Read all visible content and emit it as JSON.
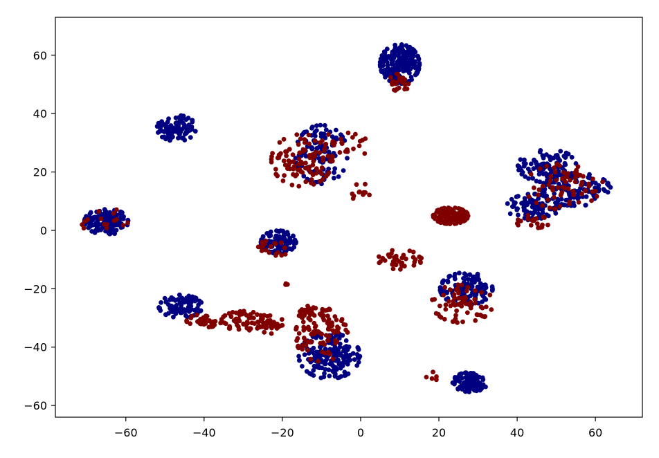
{
  "chart_data": {
    "type": "scatter",
    "title": "",
    "xlabel": "",
    "ylabel": "",
    "xlim": [
      -78,
      72
    ],
    "ylim": [
      -64,
      73
    ],
    "xticks": [
      -60,
      -40,
      -20,
      0,
      20,
      40,
      60
    ],
    "yticks": [
      -60,
      -40,
      -20,
      0,
      20,
      40,
      60
    ],
    "xtick_labels": [
      "−60",
      "−40",
      "−20",
      "0",
      "20",
      "40",
      "60"
    ],
    "ytick_labels": [
      "−60",
      "−40",
      "−20",
      "0",
      "20",
      "40",
      "60"
    ],
    "grid": false,
    "legend": "none",
    "series": [
      {
        "color": "#000080",
        "clusters": [
          {
            "cx": -65,
            "cy": 3,
            "rx": 5,
            "ry": 4,
            "n": 130
          },
          {
            "cx": -47,
            "cy": 35,
            "rx": 4.5,
            "ry": 4,
            "n": 100
          },
          {
            "cx": -21,
            "cy": -4,
            "rx": 4,
            "ry": 3.5,
            "n": 110
          },
          {
            "cx": -46,
            "cy": -26,
            "rx": 5,
            "ry": 3.5,
            "n": 90
          },
          {
            "cx": -10,
            "cy": 26,
            "rx": 6,
            "ry": 9,
            "n": 110
          },
          {
            "cx": 10,
            "cy": 57,
            "rx": 4.5,
            "ry": 6,
            "n": 170
          },
          {
            "cx": -8,
            "cy": -43,
            "rx": 7,
            "ry": 7,
            "n": 180
          },
          {
            "cx": 27,
            "cy": -20,
            "rx": 6,
            "ry": 5,
            "n": 120
          },
          {
            "cx": 28,
            "cy": -52,
            "rx": 4,
            "ry": 3,
            "n": 100
          },
          {
            "cx": 48,
            "cy": 22,
            "rx": 7,
            "ry": 5,
            "n": 110
          },
          {
            "cx": 55,
            "cy": 14,
            "rx": 8,
            "ry": 5,
            "n": 110
          },
          {
            "cx": 44,
            "cy": 8,
            "rx": 6,
            "ry": 4,
            "n": 90
          }
        ]
      },
      {
        "color": "#800000",
        "clusters": [
          {
            "cx": -65,
            "cy": 3,
            "rx": 6,
            "ry": 4,
            "n": 15
          },
          {
            "cx": -15,
            "cy": 24,
            "rx": 7,
            "ry": 8,
            "n": 100
          },
          {
            "cx": -5,
            "cy": 28,
            "rx": 7,
            "ry": 5,
            "n": 30
          },
          {
            "cx": 0,
            "cy": 12,
            "rx": 2,
            "ry": 4,
            "n": 12
          },
          {
            "cx": 10,
            "cy": 51,
            "rx": 2.5,
            "ry": 3,
            "n": 25
          },
          {
            "cx": 23,
            "cy": 5,
            "rx": 4,
            "ry": 2.5,
            "n": 110
          },
          {
            "cx": -40,
            "cy": -31,
            "rx": 4,
            "ry": 2,
            "n": 40
          },
          {
            "cx": -30,
            "cy": -31,
            "rx": 5,
            "ry": 3,
            "n": 60
          },
          {
            "cx": -23,
            "cy": -32,
            "rx": 3,
            "ry": 3,
            "n": 30
          },
          {
            "cx": -10,
            "cy": -36,
            "rx": 6,
            "ry": 8,
            "n": 90
          },
          {
            "cx": -12,
            "cy": -28,
            "rx": 4,
            "ry": 2,
            "n": 30
          },
          {
            "cx": 10,
            "cy": -10,
            "rx": 5,
            "ry": 3,
            "n": 40
          },
          {
            "cx": 26,
            "cy": -25,
            "rx": 7,
            "ry": 6,
            "n": 70
          },
          {
            "cx": 52,
            "cy": 15,
            "rx": 9,
            "ry": 7,
            "n": 70
          },
          {
            "cx": 44,
            "cy": 3,
            "rx": 4,
            "ry": 2,
            "n": 20
          },
          {
            "cx": -22,
            "cy": -6,
            "rx": 4,
            "ry": 2.5,
            "n": 20
          },
          {
            "cx": -19,
            "cy": -18,
            "rx": 0.5,
            "ry": 1.5,
            "n": 4
          },
          {
            "cx": 19,
            "cy": -50,
            "rx": 2,
            "ry": 1.5,
            "n": 5
          }
        ]
      }
    ]
  }
}
